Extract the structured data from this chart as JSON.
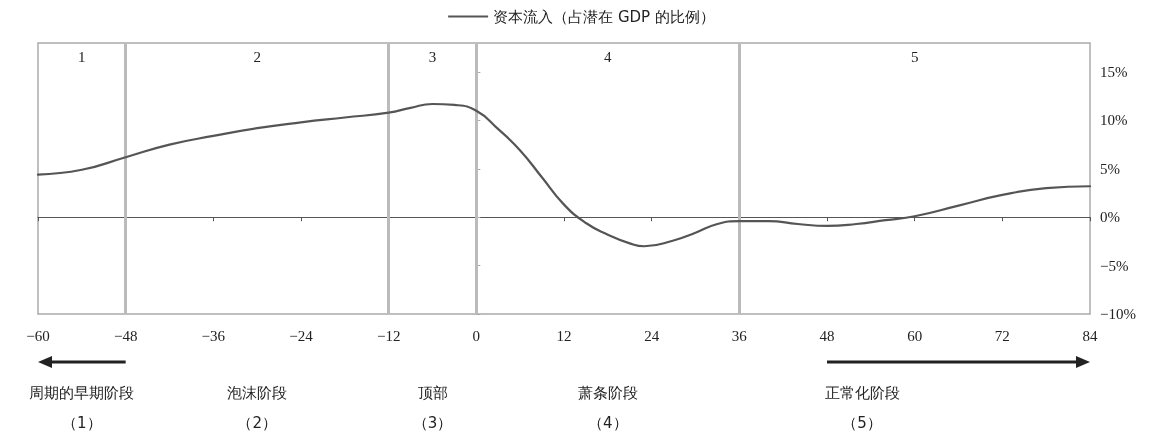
{
  "chart_data": {
    "type": "line",
    "series": [
      {
        "name": "资本流入（占潜在 GDP 的比例）",
        "color": "#555555",
        "x": [
          -60,
          -54,
          -48,
          -42,
          -36,
          -30,
          -24,
          -18,
          -12,
          -9,
          -6,
          -3,
          0,
          3,
          6,
          9,
          12,
          15,
          18,
          21,
          23,
          27,
          30,
          33,
          36,
          40,
          44,
          48,
          52,
          56,
          60,
          66,
          72,
          78,
          84
        ],
        "values": [
          4.4,
          4.9,
          6.2,
          7.5,
          8.4,
          9.2,
          9.8,
          10.3,
          10.8,
          11.3,
          11.7,
          11.6,
          11.0,
          9.1,
          6.9,
          4.1,
          1.3,
          -0.6,
          -1.8,
          -2.7,
          -3.0,
          -2.4,
          -1.6,
          -0.7,
          -0.4,
          -0.4,
          -0.7,
          -0.9,
          -0.7,
          -0.3,
          0.1,
          1.2,
          2.3,
          3.0,
          3.2
        ]
      }
    ],
    "xlim": [
      -60,
      84
    ],
    "xticks": [
      {
        "value": -60,
        "label": "−60"
      },
      {
        "value": -48,
        "label": "−48"
      },
      {
        "value": -36,
        "label": "−36"
      },
      {
        "value": -24,
        "label": "−24"
      },
      {
        "value": -12,
        "label": "−12"
      },
      0,
      12,
      24,
      36,
      48,
      60,
      72,
      84
    ],
    "ylim": [
      -10,
      18
    ],
    "yticks": [
      {
        "value": -10,
        "label": "−10%"
      },
      {
        "value": -5,
        "label": "−5%"
      },
      {
        "value": 0,
        "label": "0%"
      },
      {
        "value": 5,
        "label": "5%"
      },
      {
        "value": 10,
        "label": "10%"
      },
      {
        "value": 15,
        "label": "15%"
      }
    ],
    "grid": false,
    "legend": "top",
    "marker": "none",
    "line_style": "solid",
    "ref_lines": [
      {
        "axis": "x",
        "value": -48,
        "color": "#bbbbbb"
      },
      {
        "axis": "x",
        "value": -12,
        "color": "#bbbbbb"
      },
      {
        "axis": "x",
        "value": 0,
        "color": "#bbbbbb"
      },
      {
        "axis": "x",
        "value": 36,
        "color": "#bbbbbb"
      }
    ],
    "annotations": [
      "1",
      "2",
      "3",
      "4",
      "5",
      "周期的早期阶段",
      "（1）",
      "泡沫阶段",
      "（2）",
      "顶部",
      "（3）",
      "萧条阶段",
      "（4）",
      "正常化阶段",
      "（5）"
    ]
  }
}
